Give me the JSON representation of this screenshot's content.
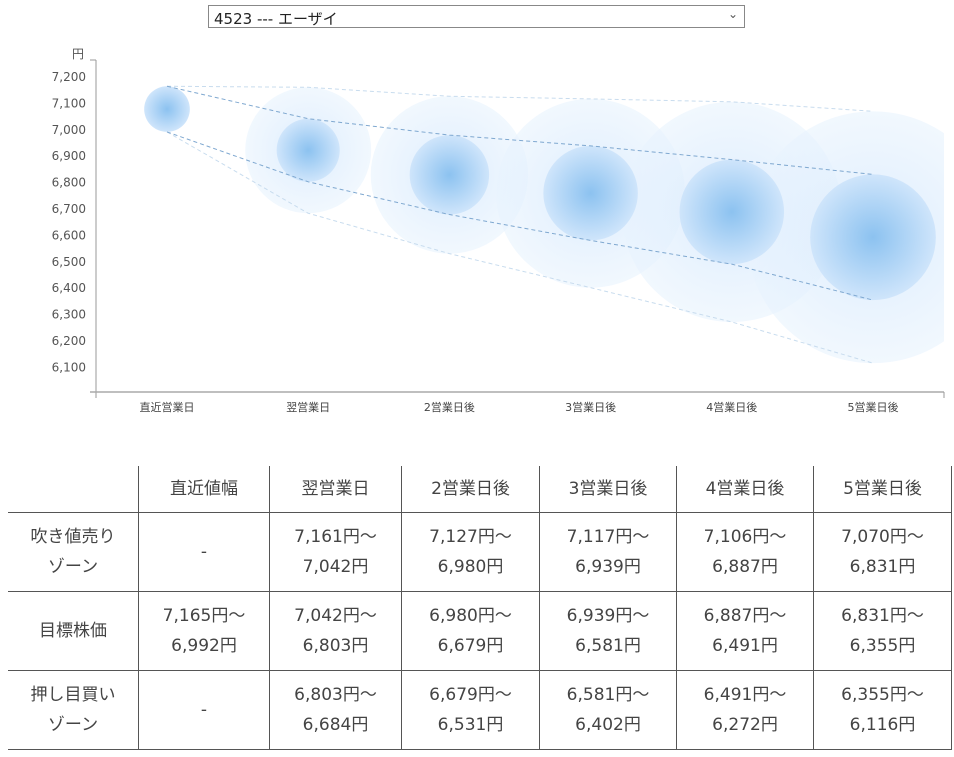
{
  "selector": {
    "value": "4523 --- エーザイ",
    "chevron": "chevron-down-icon"
  },
  "chart_data": {
    "type": "bubble-range",
    "ylabel": "円",
    "ylim": [
      6000,
      7265
    ],
    "yticks": [
      "7,200",
      "7,100",
      "7,000",
      "6,900",
      "6,800",
      "6,700",
      "6,600",
      "6,500",
      "6,400",
      "6,300",
      "6,200",
      "6,100"
    ],
    "ytick_values": [
      7200,
      7100,
      7000,
      6900,
      6800,
      6700,
      6600,
      6500,
      6400,
      6300,
      6200,
      6100
    ],
    "categories": [
      "直近営業日",
      "翌営業日",
      "2営業日後",
      "3営業日後",
      "4営業日後",
      "5営業日後"
    ],
    "series": [
      {
        "name": "吹き値売りゾーン上限",
        "values": [
          null,
          7161,
          7127,
          7117,
          7106,
          7070
        ]
      },
      {
        "name": "目標株価上限",
        "values": [
          7165,
          7042,
          6980,
          6939,
          6887,
          6831
        ]
      },
      {
        "name": "目標株価下限",
        "values": [
          6992,
          6803,
          6679,
          6581,
          6491,
          6355
        ]
      },
      {
        "name": "押し目買いゾーン下限",
        "values": [
          null,
          6684,
          6531,
          6402,
          6272,
          6116
        ]
      }
    ],
    "colors": {
      "inner": "#8cc2f0",
      "outer": "#e3f0fd",
      "target_line": "#7fa8d0",
      "zone_line": "#c8dcee"
    }
  },
  "table": {
    "headers": [
      "",
      "直近値幅",
      "翌営業日",
      "2営業日後",
      "3営業日後",
      "4営業日後",
      "5営業日後"
    ],
    "rows": [
      {
        "label": [
          "吹き値売り",
          "ゾーン"
        ],
        "cells": [
          [
            "-"
          ],
          [
            "7,161円～",
            "7,042円"
          ],
          [
            "7,127円～",
            "6,980円"
          ],
          [
            "7,117円～",
            "6,939円"
          ],
          [
            "7,106円～",
            "6,887円"
          ],
          [
            "7,070円～",
            "6,831円"
          ]
        ]
      },
      {
        "label": [
          "目標株価"
        ],
        "cells": [
          [
            "7,165円～",
            "6,992円"
          ],
          [
            "7,042円～",
            "6,803円"
          ],
          [
            "6,980円～",
            "6,679円"
          ],
          [
            "6,939円～",
            "6,581円"
          ],
          [
            "6,887円～",
            "6,491円"
          ],
          [
            "6,831円～",
            "6,355円"
          ]
        ]
      },
      {
        "label": [
          "押し目買い",
          "ゾーン"
        ],
        "cells": [
          [
            "-"
          ],
          [
            "6,803円～",
            "6,684円"
          ],
          [
            "6,679円～",
            "6,531円"
          ],
          [
            "6,581円～",
            "6,402円"
          ],
          [
            "6,491円～",
            "6,272円"
          ],
          [
            "6,355円～",
            "6,116円"
          ]
        ]
      }
    ]
  }
}
